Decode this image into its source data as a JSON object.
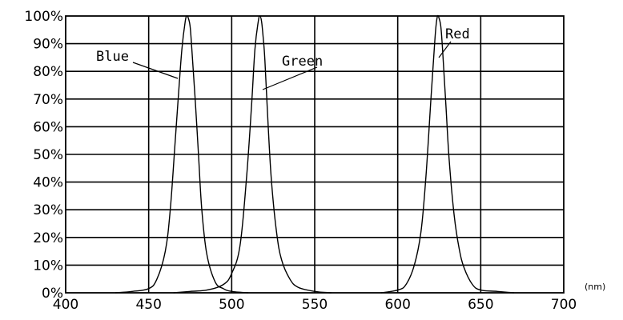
{
  "chart_data": {
    "type": "line",
    "title": "",
    "xlabel": "",
    "ylabel": "",
    "x_unit": "(nm)",
    "xlim": [
      400,
      700
    ],
    "ylim": [
      0,
      100
    ],
    "x_ticks": [
      400,
      450,
      500,
      550,
      600,
      650,
      700
    ],
    "y_ticks": [
      {
        "value": 0,
        "label": "0%"
      },
      {
        "value": 10,
        "label": "10%"
      },
      {
        "value": 20,
        "label": "20%"
      },
      {
        "value": 30,
        "label": "30%"
      },
      {
        "value": 40,
        "label": "40%"
      },
      {
        "value": 50,
        "label": "50%"
      },
      {
        "value": 60,
        "label": "60%"
      },
      {
        "value": 70,
        "label": "70%"
      },
      {
        "value": 80,
        "label": "80%"
      },
      {
        "value": 90,
        "label": "90%"
      },
      {
        "value": 100,
        "label": "100%"
      }
    ],
    "grid": true,
    "legend": "none",
    "series": [
      {
        "name": "Blue",
        "x": [
          430,
          440,
          450,
          455,
          460,
          463,
          466,
          468,
          470,
          472,
          473,
          474,
          475,
          476,
          478,
          480,
          482,
          485,
          490,
          495,
          500,
          510
        ],
        "y": [
          0,
          0.5,
          1.5,
          5,
          15,
          30,
          55,
          72,
          88,
          98,
          100,
          99,
          96,
          88,
          70,
          50,
          30,
          14,
          4,
          1.5,
          0.5,
          0
        ]
      },
      {
        "name": "Green",
        "x": [
          465,
          475,
          485,
          495,
          500,
          505,
          509,
          512,
          514,
          516,
          517,
          518,
          519,
          520,
          522,
          524,
          527,
          530,
          535,
          540,
          550,
          560
        ],
        "y": [
          0,
          0.5,
          1,
          3,
          7,
          17,
          42,
          68,
          88,
          98,
          100,
          98,
          92,
          84,
          60,
          40,
          22,
          12,
          5,
          2,
          0.5,
          0
        ]
      },
      {
        "name": "Red",
        "x": [
          590,
          600,
          605,
          610,
          614,
          617,
          620,
          622,
          623,
          624,
          625,
          626,
          627,
          629,
          631,
          634,
          637,
          640,
          645,
          650,
          660,
          670
        ],
        "y": [
          0,
          1,
          3,
          10,
          22,
          42,
          70,
          88,
          96,
          100,
          99,
          96,
          88,
          68,
          48,
          28,
          16,
          9,
          3,
          1,
          0.5,
          0
        ]
      }
    ],
    "annotations": [
      {
        "text": "Blue",
        "series": 0
      },
      {
        "text": "Green",
        "series": 1
      },
      {
        "text": "Red",
        "series": 2
      }
    ],
    "colors": {
      "line": "#000000",
      "grid": "#000000",
      "background": "#ffffff"
    }
  }
}
